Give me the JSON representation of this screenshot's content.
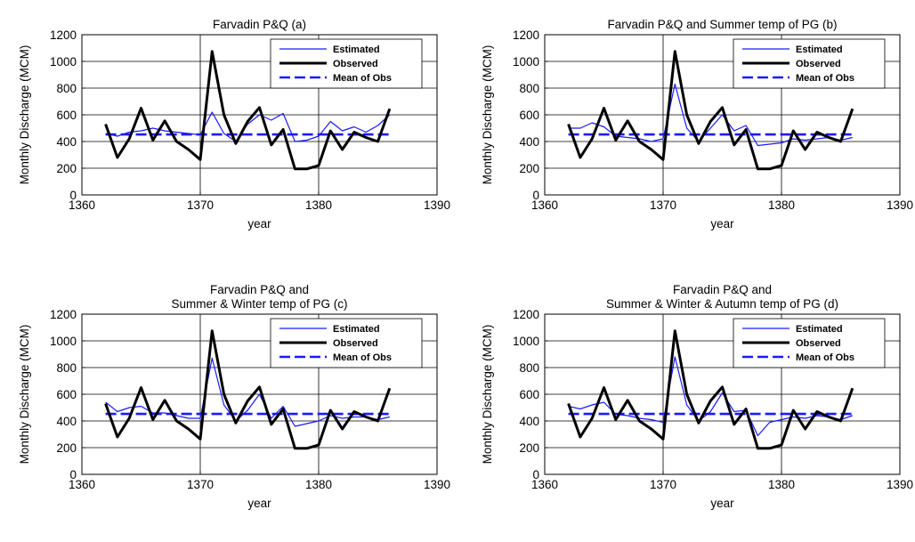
{
  "figure": {
    "panels": [
      {
        "title_lines": [
          "Farvadin P&Q (a)"
        ]
      },
      {
        "title_lines": [
          "Farvadin P&Q and Summer temp of PG (b)"
        ]
      },
      {
        "title_lines": [
          "Farvadin P&Q and",
          "Summer & Winter temp of PG (c)"
        ]
      },
      {
        "title_lines": [
          "Farvadin P&Q and",
          "Summer & Winter & Autumn temp of PG (d)"
        ]
      }
    ]
  },
  "colors": {
    "estimated": "#1a1aff",
    "observed": "#000000",
    "mean": "#1a1aff"
  },
  "chart_data": [
    {
      "type": "line",
      "title": "Farvadin P&Q (a)",
      "xlabel": "year",
      "ylabel": "Monthly Discharge (MCM)",
      "xlim": [
        1360,
        1390
      ],
      "ylim": [
        0,
        1200
      ],
      "xticks": [
        "1360",
        "1370",
        "1380",
        "1390"
      ],
      "yticks": [
        "0",
        "200",
        "400",
        "600",
        "800",
        "1000",
        "1200"
      ],
      "grid": true,
      "legend_position": "top-right",
      "x": [
        1362,
        1363,
        1364,
        1365,
        1366,
        1367,
        1368,
        1369,
        1370,
        1371,
        1372,
        1373,
        1374,
        1375,
        1376,
        1377,
        1378,
        1379,
        1380,
        1381,
        1382,
        1383,
        1384,
        1385,
        1386
      ],
      "series": [
        {
          "name": "Estimated",
          "values": [
            460,
            440,
            470,
            480,
            500,
            480,
            470,
            460,
            450,
            620,
            460,
            400,
            530,
            600,
            560,
            610,
            400,
            410,
            440,
            550,
            480,
            510,
            470,
            520,
            600
          ]
        },
        {
          "name": "Observed",
          "values": [
            530,
            280,
            420,
            650,
            410,
            555,
            400,
            340,
            265,
            1075,
            600,
            385,
            550,
            655,
            375,
            490,
            195,
            195,
            220,
            480,
            340,
            470,
            430,
            400,
            645
          ]
        },
        {
          "name": "Mean of Obs",
          "values": [
            453,
            453,
            453,
            453,
            453,
            453,
            453,
            453,
            453,
            453,
            453,
            453,
            453,
            453,
            453,
            453,
            453,
            453,
            453,
            453,
            453,
            453,
            453,
            453,
            453
          ]
        }
      ]
    },
    {
      "type": "line",
      "title": "Farvadin P&Q and Summer temp of PG (b)",
      "xlabel": "year",
      "ylabel": "Monthly Discharge (MCM)",
      "xlim": [
        1360,
        1390
      ],
      "ylim": [
        0,
        1200
      ],
      "xticks": [
        "1360",
        "1370",
        "1380",
        "1390"
      ],
      "yticks": [
        "0",
        "200",
        "400",
        "600",
        "800",
        "1000",
        "1200"
      ],
      "grid": true,
      "legend_position": "top-right",
      "x": [
        1362,
        1363,
        1364,
        1365,
        1366,
        1367,
        1368,
        1369,
        1370,
        1371,
        1372,
        1373,
        1374,
        1375,
        1376,
        1377,
        1378,
        1379,
        1380,
        1381,
        1382,
        1383,
        1384,
        1385,
        1386
      ],
      "series": [
        {
          "name": "Estimated",
          "values": [
            500,
            500,
            540,
            510,
            440,
            430,
            420,
            400,
            420,
            830,
            500,
            400,
            500,
            600,
            480,
            520,
            370,
            380,
            390,
            420,
            410,
            420,
            430,
            410,
            430
          ]
        },
        {
          "name": "Observed",
          "values": [
            530,
            280,
            420,
            650,
            410,
            555,
            400,
            340,
            265,
            1075,
            600,
            385,
            550,
            655,
            375,
            490,
            195,
            195,
            220,
            480,
            340,
            470,
            430,
            400,
            645
          ]
        },
        {
          "name": "Mean of Obs",
          "values": [
            453,
            453,
            453,
            453,
            453,
            453,
            453,
            453,
            453,
            453,
            453,
            453,
            453,
            453,
            453,
            453,
            453,
            453,
            453,
            453,
            453,
            453,
            453,
            453,
            453
          ]
        }
      ]
    },
    {
      "type": "line",
      "title": "Farvadin P&Q and Summer & Winter temp of PG (c)",
      "xlabel": "year",
      "ylabel": "Monthly Discharge (MCM)",
      "xlim": [
        1360,
        1390
      ],
      "ylim": [
        0,
        1200
      ],
      "xticks": [
        "1360",
        "1370",
        "1380",
        "1390"
      ],
      "yticks": [
        "0",
        "200",
        "400",
        "600",
        "800",
        "1000",
        "1200"
      ],
      "grid": true,
      "legend_position": "top-right",
      "x": [
        1362,
        1363,
        1364,
        1365,
        1366,
        1367,
        1368,
        1369,
        1370,
        1371,
        1372,
        1373,
        1374,
        1375,
        1376,
        1377,
        1378,
        1379,
        1380,
        1381,
        1382,
        1383,
        1384,
        1385,
        1386
      ],
      "series": [
        {
          "name": "Estimated",
          "values": [
            540,
            470,
            500,
            510,
            460,
            460,
            440,
            420,
            420,
            870,
            520,
            400,
            480,
            600,
            420,
            510,
            360,
            380,
            400,
            440,
            420,
            430,
            430,
            410,
            430
          ]
        },
        {
          "name": "Observed",
          "values": [
            530,
            280,
            420,
            650,
            410,
            555,
            400,
            340,
            265,
            1075,
            600,
            385,
            550,
            655,
            375,
            490,
            195,
            195,
            220,
            480,
            340,
            470,
            430,
            400,
            645
          ]
        },
        {
          "name": "Mean of Obs",
          "values": [
            453,
            453,
            453,
            453,
            453,
            453,
            453,
            453,
            453,
            453,
            453,
            453,
            453,
            453,
            453,
            453,
            453,
            453,
            453,
            453,
            453,
            453,
            453,
            453,
            453
          ]
        }
      ]
    },
    {
      "type": "line",
      "title": "Farvadin P&Q and Summer & Winter & Autumn temp of PG (d)",
      "xlabel": "year",
      "ylabel": "Monthly Discharge (MCM)",
      "xlim": [
        1360,
        1390
      ],
      "ylim": [
        0,
        1200
      ],
      "xticks": [
        "1360",
        "1370",
        "1380",
        "1390"
      ],
      "yticks": [
        "0",
        "200",
        "400",
        "600",
        "800",
        "1000",
        "1200"
      ],
      "grid": true,
      "legend_position": "top-right",
      "x": [
        1362,
        1363,
        1364,
        1365,
        1366,
        1367,
        1368,
        1369,
        1370,
        1371,
        1372,
        1373,
        1374,
        1375,
        1376,
        1377,
        1378,
        1379,
        1380,
        1381,
        1382,
        1383,
        1384,
        1385,
        1386
      ],
      "series": [
        {
          "name": "Estimated",
          "values": [
            510,
            490,
            520,
            540,
            450,
            440,
            420,
            410,
            390,
            880,
            520,
            400,
            470,
            610,
            470,
            480,
            290,
            390,
            410,
            430,
            420,
            440,
            430,
            410,
            440
          ]
        },
        {
          "name": "Observed",
          "values": [
            530,
            280,
            420,
            650,
            410,
            555,
            400,
            340,
            265,
            1075,
            600,
            385,
            550,
            655,
            375,
            490,
            195,
            195,
            220,
            480,
            340,
            470,
            430,
            400,
            645
          ]
        },
        {
          "name": "Mean of Obs",
          "values": [
            453,
            453,
            453,
            453,
            453,
            453,
            453,
            453,
            453,
            453,
            453,
            453,
            453,
            453,
            453,
            453,
            453,
            453,
            453,
            453,
            453,
            453,
            453,
            453,
            453
          ]
        }
      ]
    }
  ]
}
